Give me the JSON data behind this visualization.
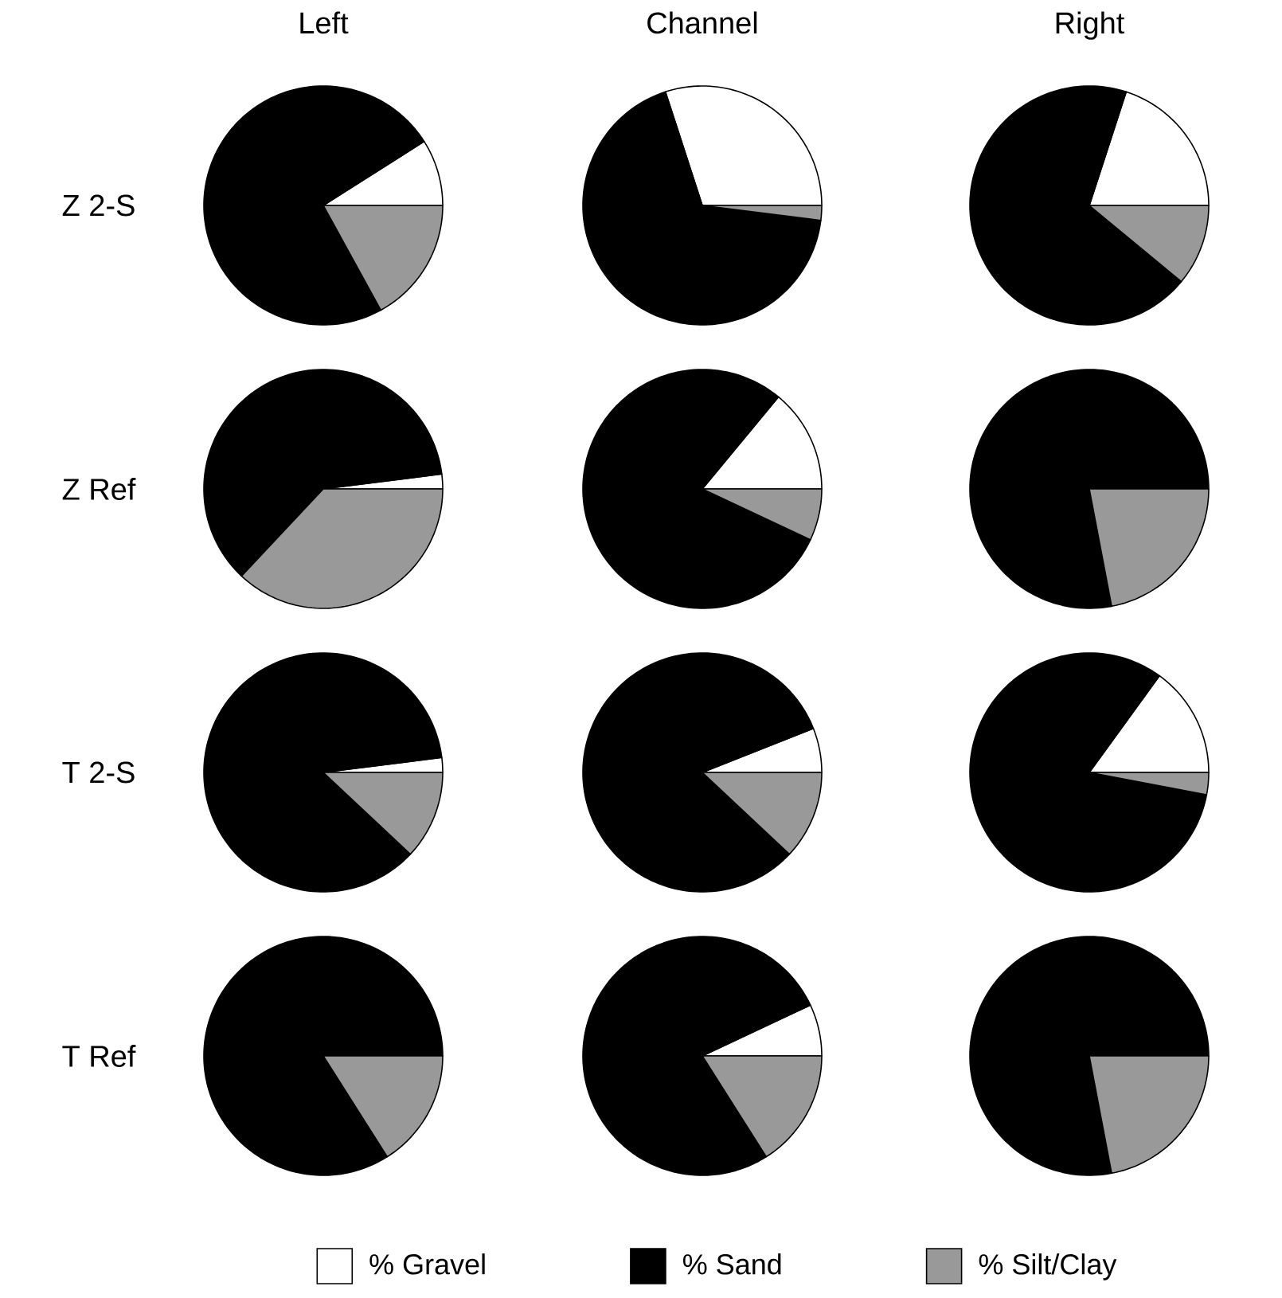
{
  "chart_data": [
    {
      "type": "pie",
      "title": "Left",
      "ylabel": "Z 2-S",
      "categories": [
        null,
        null,
        null
      ],
      "values": [
        9,
        74,
        17
      ],
      "colors": [
        "#ffffff",
        "#000000",
        "#999999"
      ]
    },
    {
      "type": "pie",
      "title": "Channel",
      "categories": [
        null,
        null,
        null
      ],
      "values": [
        30,
        68,
        2
      ],
      "colors": [
        "#ffffff",
        "#000000",
        "#999999"
      ]
    },
    {
      "type": "pie",
      "title": "Right",
      "categories": [
        null,
        null,
        null
      ],
      "values": [
        20,
        69,
        11
      ],
      "colors": [
        "#ffffff",
        "#000000",
        "#999999"
      ]
    },
    {
      "type": "pie",
      "ylabel": "Z Ref",
      "categories": [
        null,
        null,
        null
      ],
      "values": [
        2,
        61,
        37
      ],
      "colors": [
        "#ffffff",
        "#000000",
        "#999999"
      ]
    },
    {
      "type": "pie",
      "categories": [
        null,
        null,
        null
      ],
      "values": [
        14,
        79,
        7
      ],
      "colors": [
        "#ffffff",
        "#000000",
        "#999999"
      ]
    },
    {
      "type": "pie",
      "categories": [
        null,
        null,
        null
      ],
      "values": [
        0,
        78,
        22
      ],
      "colors": [
        "#ffffff",
        "#000000",
        "#999999"
      ]
    },
    {
      "type": "pie",
      "ylabel": "T 2-S",
      "categories": [
        null,
        null,
        null
      ],
      "values": [
        2,
        86,
        12
      ],
      "colors": [
        "#ffffff",
        "#000000",
        "#999999"
      ]
    },
    {
      "type": "pie",
      "categories": [
        null,
        null,
        null
      ],
      "values": [
        6,
        82,
        12
      ],
      "colors": [
        "#ffffff",
        "#000000",
        "#999999"
      ]
    },
    {
      "type": "pie",
      "categories": [
        null,
        null,
        null
      ],
      "values": [
        15,
        82,
        3
      ],
      "colors": [
        "#ffffff",
        "#000000",
        "#999999"
      ]
    },
    {
      "type": "pie",
      "ylabel": "T Ref",
      "categories": [
        null,
        null,
        null
      ],
      "values": [
        0,
        84,
        16
      ],
      "colors": [
        "#ffffff",
        "#000000",
        "#999999"
      ]
    },
    {
      "type": "pie",
      "categories": [
        null,
        null,
        null
      ],
      "values": [
        7,
        77,
        16
      ],
      "colors": [
        "#ffffff",
        "#000000",
        "#999999"
      ]
    },
    {
      "type": "pie",
      "categories": [
        "% Gravel",
        "% Sand",
        "% Silt/Clay"
      ],
      "values": [
        0,
        78,
        22
      ],
      "colors": [
        "#ffffff",
        "#000000",
        "#999999"
      ],
      "legend": "bottom"
    }
  ]
}
